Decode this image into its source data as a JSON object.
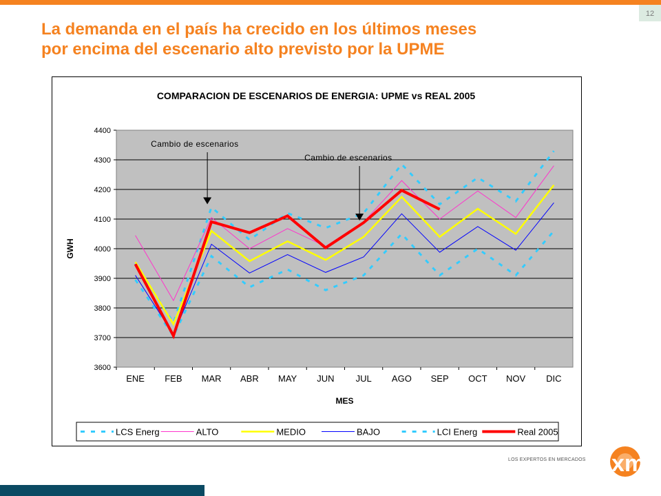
{
  "slide": {
    "title_line1": "La demanda en el país ha crecido en los últimos meses",
    "title_line2": "por encima del escenario alto previsto por la UPME",
    "page_number": "12",
    "brand_tagline": "LOS EXPERTOS EN MERCADOS",
    "brand_logo_text": "xm",
    "colors": {
      "accent": "#f58220",
      "footer_bar": "#0b4a63",
      "page_box": "#dcebe1"
    }
  },
  "chart_data": {
    "type": "line",
    "title": "COMPARACION DE ESCENARIOS DE ENERGIA: UPME vs REAL 2005",
    "xlabel": "MES",
    "ylabel": "GWH",
    "ylim": [
      3600,
      4400
    ],
    "yticks": [
      "3600",
      "3700",
      "3800",
      "3900",
      "4000",
      "4100",
      "4200",
      "4300",
      "4400"
    ],
    "grid": true,
    "legend_position": "bottom",
    "plot_background": "#c0c0c0",
    "categories": [
      "ENE",
      "FEB",
      "MAR",
      "ABR",
      "MAY",
      "JUN",
      "JUL",
      "AGO",
      "SEP",
      "OCT",
      "NOV",
      "DIC"
    ],
    "series": [
      {
        "name": "LCS Energ",
        "color": "#33ccff",
        "style": "dashed",
        "values": [
          3950,
          3750,
          4140,
          4030,
          4120,
          4070,
          4120,
          4285,
          4150,
          4240,
          4160,
          4330
        ]
      },
      {
        "name": "ALTO",
        "color": "#ff33cc",
        "style": "solid",
        "values": [
          4045,
          3825,
          4105,
          4000,
          4068,
          4008,
          4090,
          4230,
          4100,
          4195,
          4105,
          4280
        ]
      },
      {
        "name": "MEDIO",
        "color": "#ffff00",
        "style": "solid",
        "values": [
          3955,
          3745,
          4060,
          3958,
          4025,
          3962,
          4040,
          4175,
          4040,
          4135,
          4050,
          4215
        ]
      },
      {
        "name": "BAJO",
        "color": "#0000ff",
        "style": "solid",
        "values": [
          3910,
          3710,
          4015,
          3918,
          3980,
          3920,
          3972,
          4118,
          3988,
          4075,
          3995,
          4155
        ]
      },
      {
        "name": "LCI Energ",
        "color": "#33ccff",
        "style": "dashed",
        "values": [
          3895,
          3705,
          3975,
          3870,
          3930,
          3860,
          3910,
          4050,
          3910,
          4000,
          3910,
          4060
        ]
      },
      {
        "name": "Real 2005",
        "color": "#ff0000",
        "style": "thick",
        "values": [
          3948,
          3706,
          4091,
          4054,
          4111,
          4003,
          4088,
          4197,
          4133,
          null,
          null,
          null
        ]
      }
    ],
    "annotations": [
      {
        "text": "Cambio de escenarios",
        "arrow_category": "MAR",
        "arrow_tip_value": 4150
      },
      {
        "text": "Cambio de escenarios",
        "arrow_category": "JUL",
        "arrow_tip_value": 4095
      }
    ]
  }
}
